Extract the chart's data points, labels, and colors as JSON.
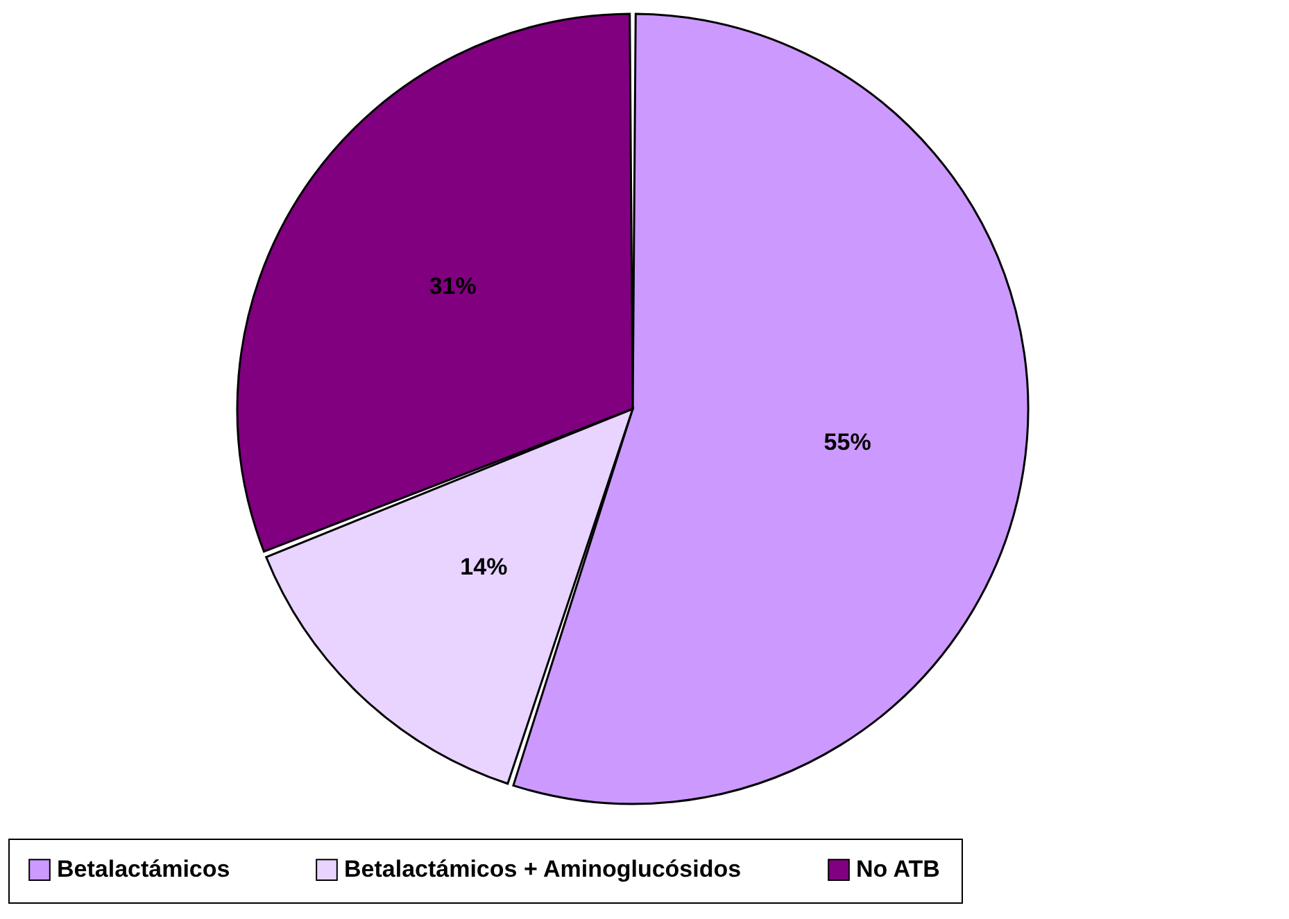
{
  "chart_data": {
    "type": "pie",
    "categories": [
      "Betalactámicos",
      "Betalactámicos + Aminoglucósidos",
      "No ATB"
    ],
    "values": [
      55,
      14,
      31
    ],
    "colors": [
      "#cc99ff",
      "#e8d4ff",
      "#800080"
    ],
    "value_labels": [
      "55%",
      "14%",
      "31%"
    ],
    "legend": "bottom"
  }
}
